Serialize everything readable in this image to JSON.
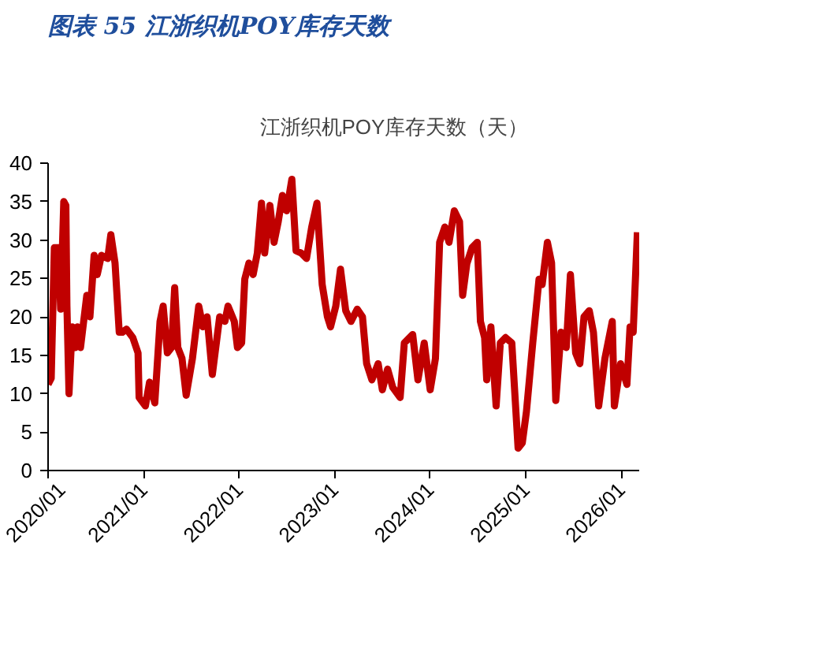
{
  "chart_data": {
    "type": "line",
    "title": "图表 55 江浙织机POY库存天数",
    "x": [
      "2020-01-01",
      "2020-01-13",
      "2020-01-25",
      "2020-02-10",
      "2020-02-18",
      "2020-03-01",
      "2020-03-09",
      "2020-03-13",
      "2020-03-21",
      "2020-04-02",
      "2020-04-14",
      "2020-04-22",
      "2020-05-04",
      "2020-05-28",
      "2020-06-09",
      "2020-06-25",
      "2020-07-07",
      "2020-07-23",
      "2020-08-16",
      "2020-08-28",
      "2020-09-13",
      "2020-09-29",
      "2020-10-11",
      "2020-10-27",
      "2020-11-20",
      "2020-12-10",
      "2020-12-14",
      "2021-01-07",
      "2021-01-23",
      "2021-02-12",
      "2021-03-04",
      "2021-03-16",
      "2021-04-01",
      "2021-04-17",
      "2021-04-29",
      "2021-05-11",
      "2021-05-27",
      "2021-06-12",
      "2021-07-06",
      "2021-07-30",
      "2021-08-15",
      "2021-08-31",
      "2021-09-20",
      "2021-10-18",
      "2021-11-07",
      "2021-11-19",
      "2021-12-13",
      "2021-12-25",
      "2022-01-10",
      "2022-01-22",
      "2022-02-07",
      "2022-02-23",
      "2022-03-11",
      "2022-03-27",
      "2022-04-08",
      "2022-04-28",
      "2022-05-14",
      "2022-05-30",
      "2022-06-15",
      "2022-07-01",
      "2022-07-21",
      "2022-08-06",
      "2022-08-26",
      "2022-09-15",
      "2022-10-05",
      "2022-10-25",
      "2022-11-14",
      "2022-12-04",
      "2022-12-16",
      "2023-01-05",
      "2023-01-23",
      "2023-02-12",
      "2023-03-04",
      "2023-03-28",
      "2023-04-17",
      "2023-05-03",
      "2023-05-23",
      "2023-06-16",
      "2023-07-02",
      "2023-07-22",
      "2023-08-11",
      "2023-09-08",
      "2023-09-24",
      "2023-10-26",
      "2023-11-15",
      "2023-12-09",
      "2024-01-01",
      "2024-01-21",
      "2024-02-06",
      "2024-02-26",
      "2024-03-13",
      "2024-04-02",
      "2024-04-22",
      "2024-05-04",
      "2024-05-20",
      "2024-06-09",
      "2024-06-29",
      "2024-07-11",
      "2024-07-27",
      "2024-08-04",
      "2024-08-20",
      "2024-09-09",
      "2024-09-25",
      "2024-10-15",
      "2024-11-08",
      "2024-12-02",
      "2024-12-18",
      "2025-01-03",
      "2025-01-27",
      "2025-02-20",
      "2025-03-04",
      "2025-03-24",
      "2025-04-09",
      "2025-04-25",
      "2025-05-15",
      "2025-06-04",
      "2025-06-20",
      "2025-07-10",
      "2025-07-26",
      "2025-08-11",
      "2025-08-31",
      "2025-09-16",
      "2025-10-06",
      "2025-10-30",
      "2025-11-27",
      "2025-12-05",
      "2025-12-29",
      "2026-01-22",
      "2026-02-03",
      "2026-02-15",
      "2026-03-03"
    ],
    "series": [
      {
        "name": "江浙织机POY库存天数（天）",
        "color": "#c00000",
        "values": [
          11.2,
          12,
          29,
          29,
          21,
          35,
          34.5,
          21.5,
          10,
          18.7,
          16,
          18.7,
          16,
          22.8,
          20,
          28,
          25.5,
          28,
          27.6,
          30.7,
          27,
          18,
          18,
          18.4,
          17.3,
          15.3,
          9.5,
          8.4,
          11.5,
          8.8,
          19.4,
          21.4,
          15.3,
          16,
          23.8,
          16,
          14.6,
          9.8,
          14.6,
          21.4,
          18.7,
          20,
          12.5,
          20,
          19.4,
          21.4,
          19.4,
          16,
          16.6,
          24.9,
          27,
          25.5,
          28.3,
          34.8,
          28.3,
          34.5,
          29.7,
          32.4,
          35.8,
          33.8,
          37.9,
          28.6,
          28.3,
          27.6,
          31.7,
          34.8,
          24.2,
          20,
          18.7,
          21.4,
          26.2,
          20.8,
          19.4,
          21,
          20,
          13.9,
          11.8,
          13.9,
          10.5,
          13.2,
          10.8,
          9.5,
          16.6,
          17.7,
          11.8,
          16.6,
          10.5,
          14.6,
          29.7,
          31.7,
          29.7,
          33.8,
          32.4,
          22.8,
          26.9,
          29,
          29.7,
          19.4,
          17.3,
          11.8,
          18.7,
          8.4,
          16.6,
          17.3,
          16.6,
          2.9,
          3.6,
          7.7,
          16.6,
          24.9,
          24.2,
          29.7,
          27,
          9.1,
          18,
          16,
          25.5,
          15.3,
          13.9,
          20,
          20.8,
          18,
          8.4,
          14.6,
          19.4,
          8.4,
          13.9,
          11.2,
          18.7,
          18,
          31
        ]
      }
    ],
    "xlim": [
      "2020-01-01",
      "2026-03-10"
    ],
    "xticks": [
      {
        "value": "2020-01-01",
        "label": "2020/01"
      },
      {
        "value": "2021-01-01",
        "label": "2021/01"
      },
      {
        "value": "2022-01-01",
        "label": "2022/01"
      },
      {
        "value": "2023-01-01",
        "label": "2023/01"
      },
      {
        "value": "2024-01-01",
        "label": "2024/01"
      },
      {
        "value": "2025-01-01",
        "label": "2025/01"
      },
      {
        "value": "2026-01-01",
        "label": "2026/01"
      }
    ],
    "ylim": [
      0,
      40
    ],
    "yticks": [
      0,
      5,
      10,
      15,
      20,
      25,
      30,
      35,
      40
    ],
    "legend": "top",
    "grid": false,
    "line_style": "solid"
  }
}
